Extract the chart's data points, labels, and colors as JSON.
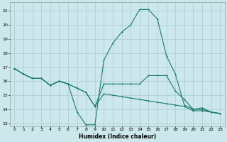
{
  "xlabel": "Humidex (Indice chaleur)",
  "bg_color": "#cce8ec",
  "grid_color": "#b0d0d4",
  "line_color": "#1a7a6e",
  "xlim": [
    -0.5,
    23.5
  ],
  "ylim": [
    12.8,
    21.6
  ],
  "yticks": [
    13,
    14,
    15,
    16,
    17,
    18,
    19,
    20,
    21
  ],
  "xticks": [
    0,
    1,
    2,
    3,
    4,
    5,
    6,
    7,
    8,
    9,
    10,
    11,
    12,
    13,
    14,
    15,
    16,
    17,
    18,
    19,
    20,
    21,
    22,
    23
  ],
  "curve1_x": [
    0,
    1,
    2,
    3,
    4,
    5,
    6,
    7,
    8,
    9,
    10,
    11,
    12,
    13,
    14,
    15,
    16,
    17,
    18,
    19,
    20,
    21,
    22,
    23
  ],
  "curve1_y": [
    16.9,
    16.5,
    16.2,
    16.2,
    15.7,
    16.0,
    15.8,
    13.8,
    12.9,
    12.9,
    17.5,
    18.7,
    19.5,
    20.0,
    21.1,
    21.1,
    20.4,
    17.8,
    16.5,
    14.3,
    14.0,
    14.1,
    13.8,
    13.7
  ],
  "curve2_x": [
    0,
    1,
    2,
    3,
    4,
    5,
    6,
    7,
    8,
    9,
    10,
    11,
    12,
    13,
    14,
    15,
    16,
    17,
    18,
    19,
    20,
    21,
    22,
    23
  ],
  "curve2_y": [
    16.9,
    16.5,
    16.2,
    16.2,
    15.7,
    16.0,
    15.8,
    15.5,
    15.2,
    14.2,
    15.8,
    15.8,
    15.8,
    15.8,
    15.8,
    16.4,
    16.4,
    16.4,
    15.3,
    14.7,
    14.0,
    14.0,
    13.8,
    13.7
  ],
  "curve3_x": [
    0,
    1,
    2,
    3,
    4,
    5,
    6,
    7,
    8,
    9,
    10,
    11,
    12,
    13,
    14,
    15,
    16,
    17,
    18,
    19,
    20,
    21,
    22,
    23
  ],
  "curve3_y": [
    16.9,
    16.5,
    16.2,
    16.2,
    15.7,
    16.0,
    15.8,
    15.5,
    15.2,
    14.2,
    15.1,
    15.0,
    14.9,
    14.8,
    14.7,
    14.6,
    14.5,
    14.4,
    14.3,
    14.2,
    13.9,
    13.9,
    13.8,
    13.7
  ]
}
